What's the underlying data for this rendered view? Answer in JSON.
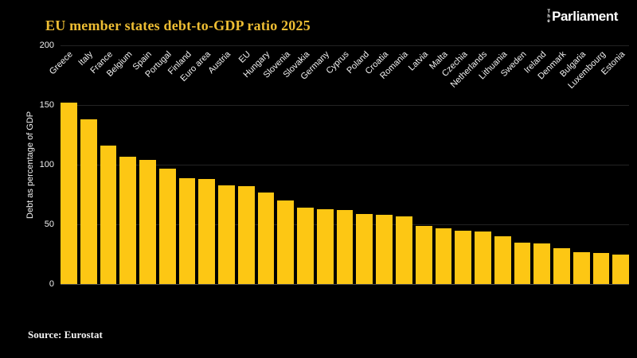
{
  "page": {
    "background": "#000000"
  },
  "header": {
    "title": "EU member states debt-to-GDP ratio 2025",
    "title_color": "#EDBD33",
    "logo": {
      "the": "The",
      "name": "Parliament",
      "color": "#FFFFFF"
    }
  },
  "chart_data": {
    "type": "bar",
    "title": "EU member states debt-to-GDP ratio 2025",
    "xlabel": "",
    "ylabel": "Debt as percentage of GDP",
    "ylim": [
      0,
      200
    ],
    "yticks": [
      0,
      50,
      100,
      150,
      200
    ],
    "grid": true,
    "legend": "none",
    "bar_color": "#FDC714",
    "grid_color": "#232323",
    "zeroline_color": "#4A4A4A",
    "tick_color": "#F1F1F1",
    "categories": [
      "Greece",
      "Italy",
      "France",
      "Belgium",
      "Spain",
      "Portugal",
      "Finland",
      "Euro area",
      "Austria",
      "EU",
      "Hungary",
      "Slovenia",
      "Slovakia",
      "Germany",
      "Cyprus",
      "Poland",
      "Croatia",
      "Romania",
      "Latvia",
      "Malta",
      "Czechia",
      "Netherlands",
      "Lithuania",
      "Sweden",
      "Ireland",
      "Denmark",
      "Bulgaria",
      "Luxembourg",
      "Estonia"
    ],
    "values": [
      152,
      138,
      116,
      107,
      104,
      97,
      89,
      88,
      83,
      82,
      77,
      70,
      64,
      63,
      62,
      59,
      58,
      57,
      49,
      47,
      45,
      44,
      40,
      35,
      34,
      30,
      27,
      26,
      25
    ]
  },
  "footer": {
    "source": "Source: Eurostat",
    "color": "#F2F2F2"
  }
}
